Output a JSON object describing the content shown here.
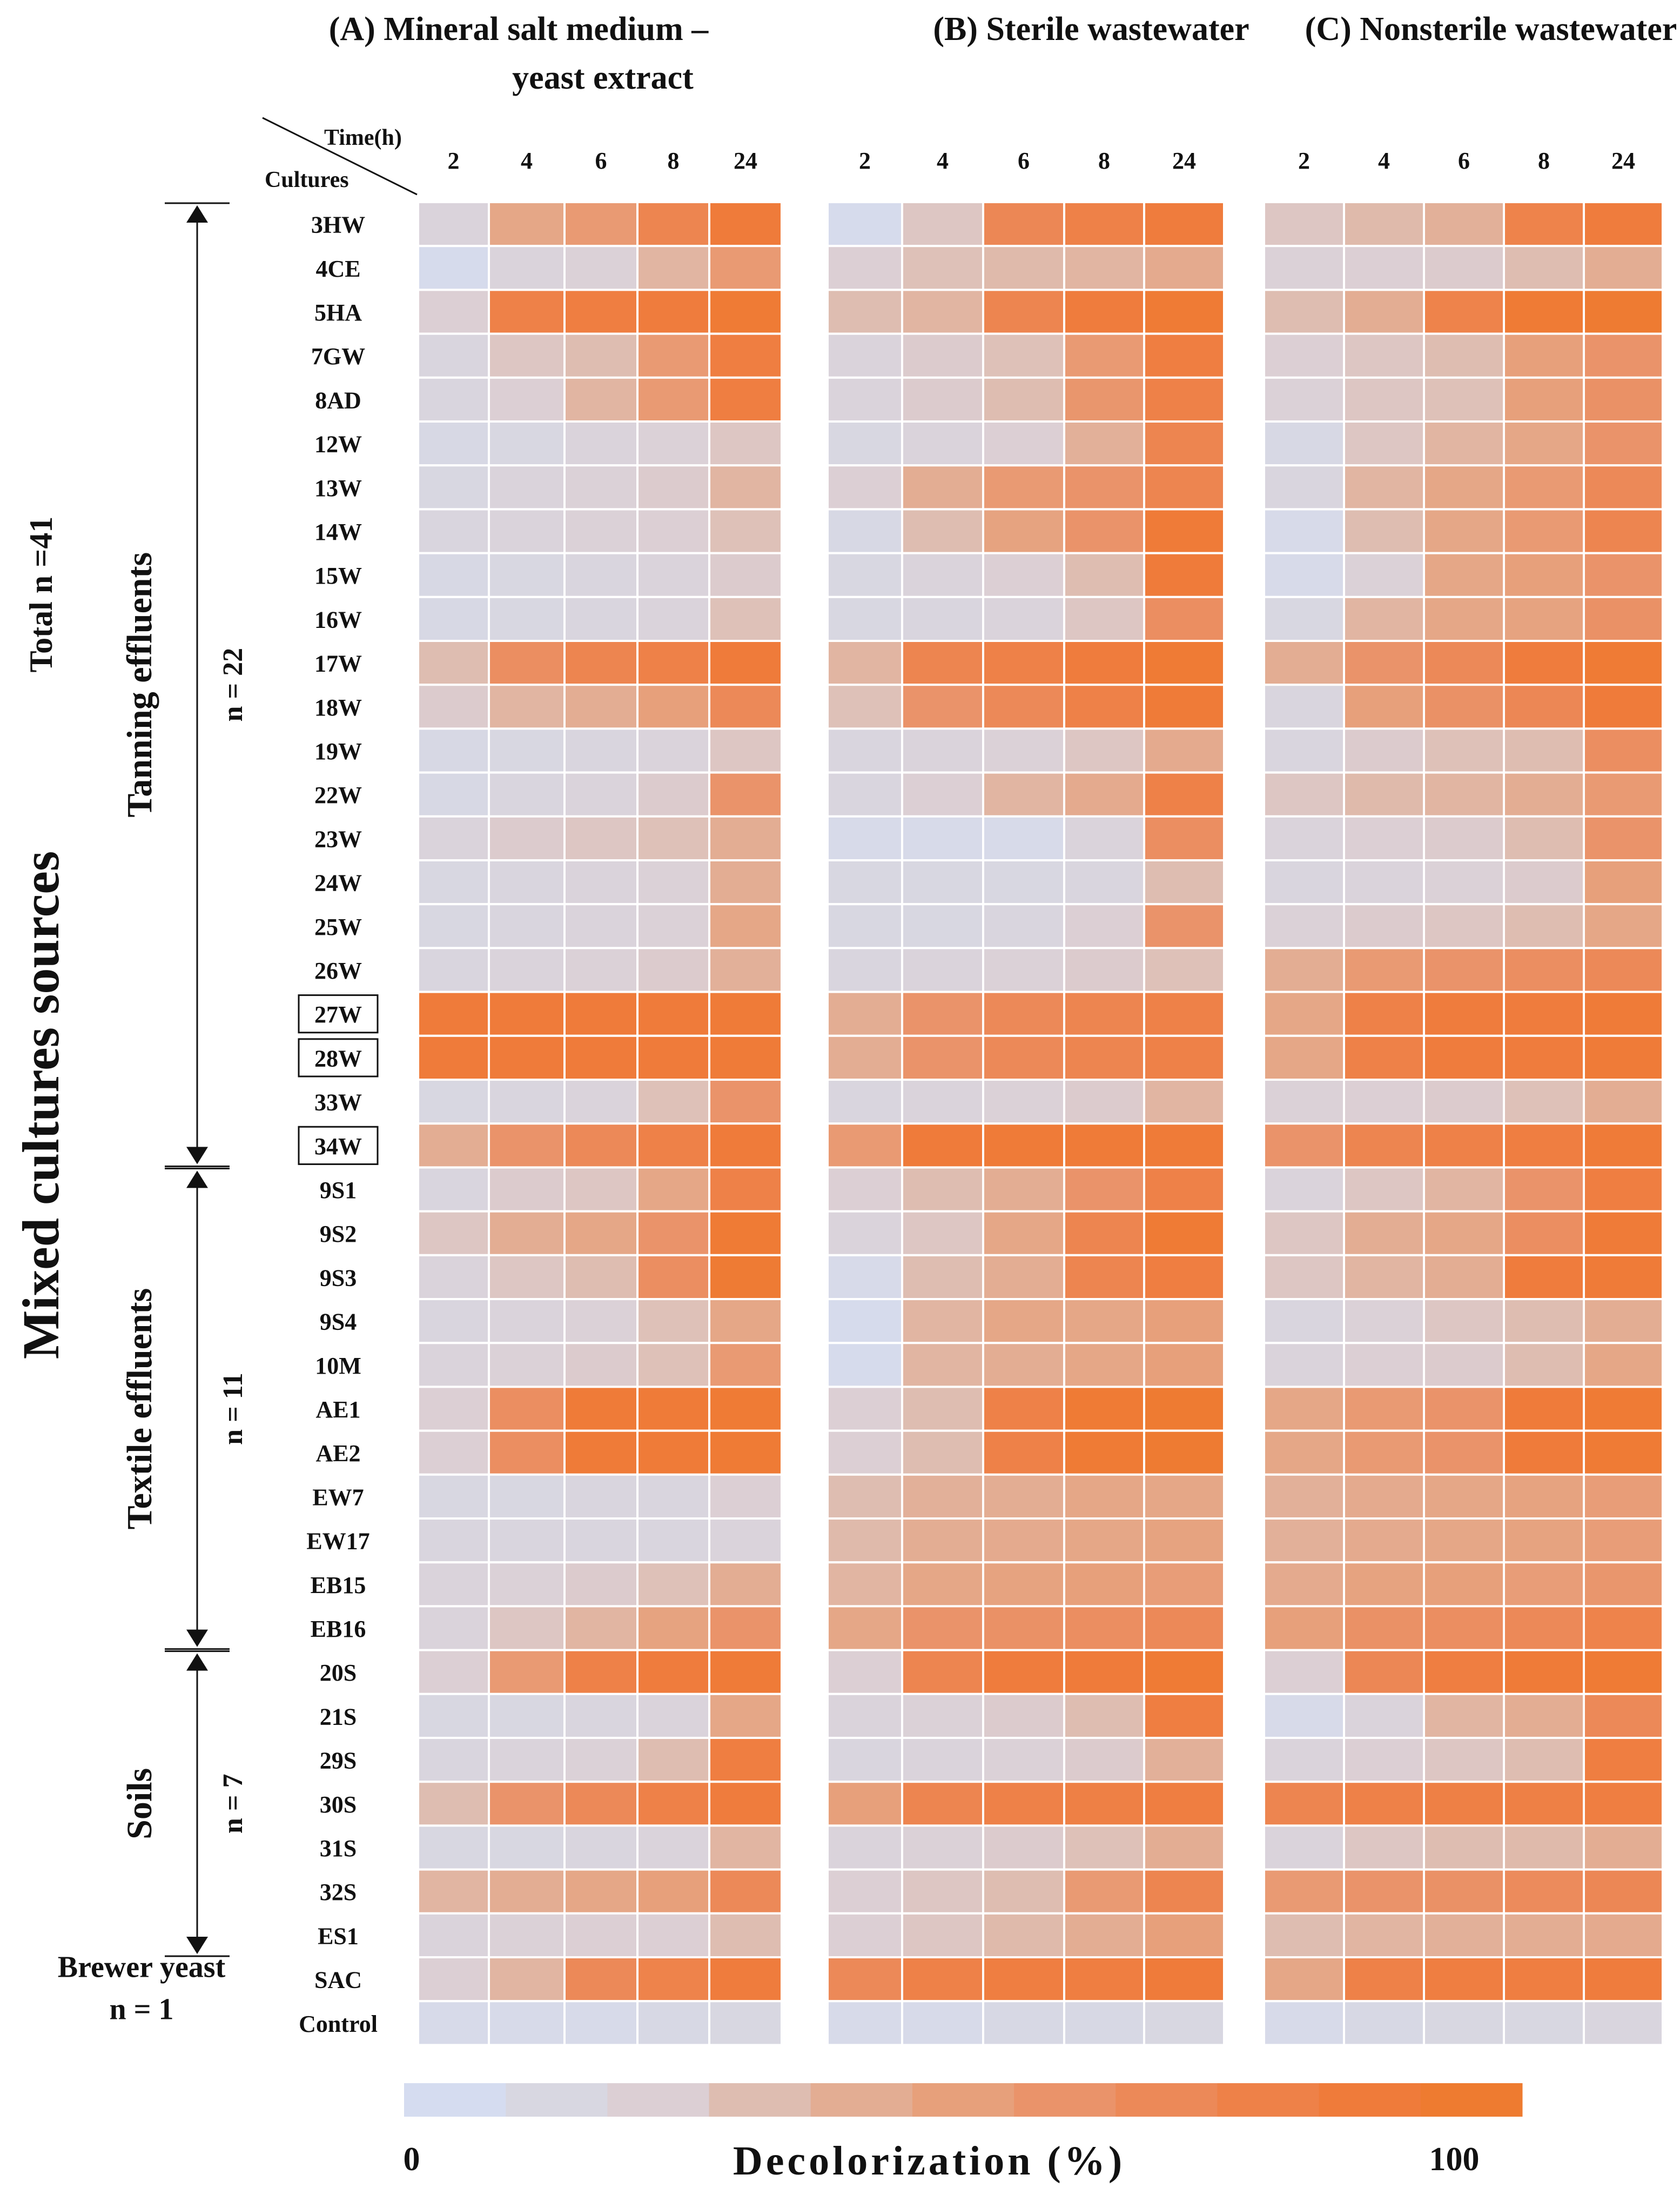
{
  "chart_data": {
    "type": "heatmap",
    "value_range": [
      0,
      100
    ],
    "colorbar": {
      "label": "Decolorization (%)",
      "min_label": "0",
      "max_label": "100",
      "colors": [
        "#d5dcf0",
        "#d8d7e1",
        "#dccfd4",
        "#debdb1",
        "#e3ad93",
        "#e7a07b",
        "#ea936a",
        "#ec8958",
        "#ee8148",
        "#ef7b3a",
        "#ee7b30"
      ]
    },
    "header": {
      "time_label": "Time(h)",
      "cultures_label": "Cultures"
    },
    "times": [
      "2",
      "4",
      "6",
      "8",
      "24"
    ],
    "panels": [
      {
        "title_line1": "(A) Mineral salt medium –",
        "title_line2": "yeast  extract"
      },
      {
        "title_line1": "(B) Sterile wastewater",
        "title_line2": ""
      },
      {
        "title_line1": "(C) Nonsterile wastewater",
        "title_line2": ""
      }
    ],
    "cultures": [
      "3HW",
      "4CE",
      "5HA",
      "7GW",
      "8AD",
      "12W",
      "13W",
      "14W",
      "15W",
      "16W",
      "17W",
      "18W",
      "19W",
      "22W",
      "23W",
      "24W",
      "25W",
      "26W",
      "27W",
      "28W",
      "33W",
      "34W",
      "9S1",
      "9S2",
      "9S3",
      "9S4",
      "10M",
      "AE1",
      "AE2",
      "EW7",
      "EW17",
      "EB15",
      "EB16",
      "20S",
      "21S",
      "29S",
      "30S",
      "31S",
      "32S",
      "ES1",
      "SAC",
      "Control"
    ],
    "boxed_cultures": [
      "27W",
      "28W",
      "34W"
    ],
    "groups": [
      {
        "name": "Tanning effluents",
        "count": "n = 22",
        "first": "3HW",
        "last": "34W"
      },
      {
        "name": "Textile effluents",
        "count": "n = 11",
        "first": "9S1",
        "last": "EB16"
      },
      {
        "name": "Soils",
        "count": "n = 7",
        "first": "20S",
        "last": "ES1"
      },
      {
        "name": "Brewer yeast",
        "count": "n = 1",
        "first": "SAC",
        "last": "SAC"
      }
    ],
    "source_title": "Mixed cultures sources",
    "total_label": "Total n =41",
    "values": {
      "A": [
        [
          15,
          45,
          55,
          75,
          90
        ],
        [
          3,
          15,
          18,
          35,
          55
        ],
        [
          20,
          80,
          85,
          88,
          95
        ],
        [
          12,
          25,
          30,
          55,
          85
        ],
        [
          12,
          20,
          35,
          55,
          85
        ],
        [
          8,
          10,
          15,
          18,
          25
        ],
        [
          10,
          15,
          18,
          22,
          35
        ],
        [
          12,
          15,
          18,
          20,
          28
        ],
        [
          8,
          10,
          12,
          15,
          22
        ],
        [
          8,
          10,
          12,
          15,
          28
        ],
        [
          30,
          65,
          75,
          80,
          90
        ],
        [
          22,
          35,
          40,
          50,
          70
        ],
        [
          8,
          10,
          12,
          15,
          25
        ],
        [
          8,
          12,
          15,
          22,
          60
        ],
        [
          15,
          22,
          25,
          28,
          40
        ],
        [
          10,
          12,
          15,
          18,
          40
        ],
        [
          10,
          12,
          15,
          18,
          45
        ],
        [
          12,
          15,
          18,
          22,
          38
        ],
        [
          90,
          90,
          90,
          90,
          92
        ],
        [
          90,
          90,
          90,
          90,
          92
        ],
        [
          10,
          12,
          15,
          28,
          60
        ],
        [
          40,
          60,
          70,
          80,
          90
        ],
        [
          12,
          22,
          25,
          45,
          80
        ],
        [
          25,
          40,
          45,
          60,
          95
        ],
        [
          15,
          25,
          30,
          65,
          96
        ],
        [
          12,
          15,
          18,
          28,
          45
        ],
        [
          15,
          18,
          22,
          28,
          55
        ],
        [
          20,
          65,
          92,
          92,
          95
        ],
        [
          20,
          65,
          92,
          92,
          95
        ],
        [
          10,
          10,
          12,
          12,
          20
        ],
        [
          12,
          12,
          12,
          12,
          15
        ],
        [
          15,
          18,
          22,
          28,
          40
        ],
        [
          15,
          25,
          35,
          48,
          60
        ],
        [
          20,
          55,
          80,
          88,
          92
        ],
        [
          10,
          10,
          12,
          15,
          45
        ],
        [
          12,
          15,
          18,
          30,
          85
        ],
        [
          30,
          60,
          70,
          80,
          88
        ],
        [
          10,
          10,
          12,
          15,
          35
        ],
        [
          35,
          40,
          45,
          50,
          70
        ],
        [
          15,
          18,
          20,
          20,
          30
        ],
        [
          20,
          35,
          70,
          78,
          88
        ],
        [
          5,
          5,
          5,
          8,
          10
        ]
      ],
      "B": [
        [
          3,
          25,
          72,
          80,
          88
        ],
        [
          20,
          28,
          32,
          35,
          42
        ],
        [
          30,
          35,
          75,
          88,
          95
        ],
        [
          15,
          22,
          28,
          55,
          85
        ],
        [
          15,
          22,
          30,
          58,
          80
        ],
        [
          10,
          15,
          20,
          38,
          75
        ],
        [
          20,
          40,
          55,
          60,
          75
        ],
        [
          8,
          30,
          48,
          60,
          92
        ],
        [
          10,
          15,
          20,
          30,
          90
        ],
        [
          10,
          12,
          15,
          25,
          65
        ],
        [
          35,
          75,
          80,
          88,
          95
        ],
        [
          28,
          60,
          70,
          80,
          92
        ],
        [
          12,
          15,
          18,
          25,
          42
        ],
        [
          12,
          20,
          35,
          42,
          80
        ],
        [
          5,
          5,
          5,
          15,
          65
        ],
        [
          10,
          10,
          10,
          12,
          30
        ],
        [
          10,
          10,
          12,
          20,
          60
        ],
        [
          12,
          15,
          18,
          22,
          28
        ],
        [
          40,
          60,
          70,
          75,
          80
        ],
        [
          40,
          60,
          70,
          75,
          80
        ],
        [
          12,
          15,
          18,
          22,
          35
        ],
        [
          55,
          90,
          92,
          92,
          92
        ],
        [
          20,
          30,
          40,
          60,
          80
        ],
        [
          15,
          25,
          45,
          75,
          95
        ],
        [
          5,
          30,
          40,
          75,
          85
        ],
        [
          3,
          35,
          45,
          45,
          50
        ],
        [
          3,
          35,
          40,
          45,
          50
        ],
        [
          20,
          30,
          80,
          95,
          98
        ],
        [
          20,
          30,
          80,
          95,
          98
        ],
        [
          30,
          38,
          40,
          45,
          45
        ],
        [
          32,
          40,
          42,
          45,
          48
        ],
        [
          35,
          45,
          48,
          50,
          52
        ],
        [
          45,
          60,
          62,
          65,
          70
        ],
        [
          20,
          75,
          88,
          90,
          95
        ],
        [
          15,
          18,
          22,
          30,
          85
        ],
        [
          12,
          15,
          18,
          22,
          38
        ],
        [
          50,
          75,
          80,
          82,
          85
        ],
        [
          15,
          18,
          22,
          28,
          40
        ],
        [
          20,
          25,
          30,
          55,
          75
        ],
        [
          20,
          25,
          32,
          40,
          50
        ],
        [
          70,
          80,
          85,
          85,
          90
        ],
        [
          5,
          5,
          8,
          8,
          10
        ]
      ],
      "C": [
        [
          25,
          32,
          38,
          78,
          88
        ],
        [
          18,
          20,
          22,
          30,
          40
        ],
        [
          30,
          40,
          78,
          95,
          98
        ],
        [
          20,
          25,
          30,
          50,
          60
        ],
        [
          18,
          25,
          28,
          50,
          62
        ],
        [
          8,
          25,
          35,
          45,
          60
        ],
        [
          12,
          35,
          45,
          55,
          70
        ],
        [
          5,
          30,
          45,
          55,
          75
        ],
        [
          5,
          18,
          45,
          50,
          60
        ],
        [
          10,
          35,
          45,
          48,
          62
        ],
        [
          40,
          60,
          70,
          88,
          95
        ],
        [
          12,
          50,
          62,
          72,
          90
        ],
        [
          12,
          22,
          28,
          30,
          65
        ],
        [
          25,
          32,
          35,
          40,
          55
        ],
        [
          15,
          20,
          22,
          30,
          60
        ],
        [
          12,
          15,
          18,
          22,
          50
        ],
        [
          18,
          22,
          25,
          30,
          45
        ],
        [
          40,
          55,
          60,
          65,
          70
        ],
        [
          45,
          80,
          88,
          88,
          92
        ],
        [
          45,
          80,
          88,
          88,
          92
        ],
        [
          18,
          20,
          22,
          28,
          40
        ],
        [
          60,
          75,
          80,
          85,
          92
        ],
        [
          15,
          25,
          35,
          60,
          85
        ],
        [
          25,
          40,
          45,
          65,
          92
        ],
        [
          25,
          35,
          40,
          88,
          92
        ],
        [
          12,
          18,
          25,
          30,
          40
        ],
        [
          15,
          20,
          22,
          30,
          45
        ],
        [
          45,
          55,
          60,
          90,
          95
        ],
        [
          45,
          55,
          60,
          90,
          95
        ],
        [
          38,
          42,
          45,
          48,
          52
        ],
        [
          38,
          42,
          45,
          48,
          52
        ],
        [
          42,
          48,
          50,
          52,
          58
        ],
        [
          50,
          62,
          65,
          70,
          78
        ],
        [
          20,
          72,
          85,
          92,
          95
        ],
        [
          5,
          15,
          35,
          40,
          70
        ],
        [
          15,
          20,
          25,
          30,
          85
        ],
        [
          75,
          80,
          82,
          82,
          85
        ],
        [
          15,
          25,
          30,
          32,
          40
        ],
        [
          55,
          60,
          62,
          68,
          72
        ],
        [
          30,
          35,
          38,
          40,
          42
        ],
        [
          45,
          80,
          85,
          85,
          88
        ],
        [
          5,
          8,
          10,
          10,
          12
        ]
      ]
    }
  }
}
